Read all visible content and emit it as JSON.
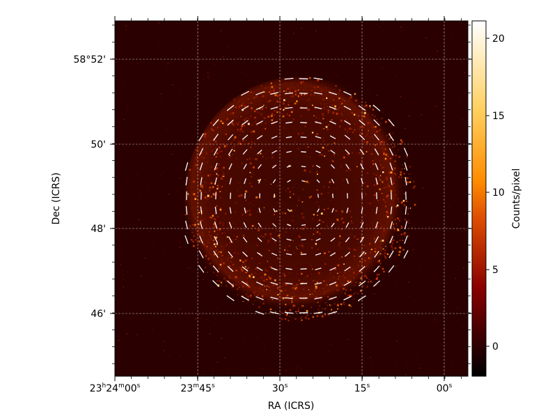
{
  "image": {
    "xlabel": "RA (ICRS)",
    "ylabel": "Dec (ICRS)",
    "x_ticks": [
      {
        "h": "23",
        "m": "24",
        "s": "00",
        "label": "23h24m00s"
      },
      {
        "s": "45",
        "label": "23m45s"
      },
      {
        "s": "30",
        "label": "30s"
      },
      {
        "s": "15",
        "label": "15s"
      },
      {
        "s": "00",
        "label": "00s"
      }
    ],
    "y_ticks": [
      "58°52'",
      "50'",
      "48'",
      "46'"
    ],
    "grid": true,
    "colormap": "afmhot",
    "colorbar": {
      "label": "Counts/pixel",
      "ticks": [
        "0",
        "5",
        "10",
        "15",
        "20"
      ],
      "range": [
        -1.8,
        21.2
      ]
    }
  }
}
